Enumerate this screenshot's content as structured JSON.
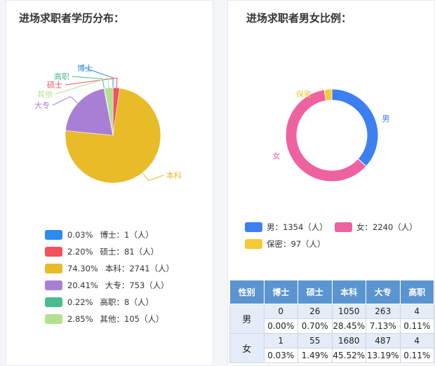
{
  "left": {
    "title": "进场求职者学历分布：",
    "legend": [
      {
        "pct": "0.03%",
        "text": "博士：1（人）",
        "color": "#2b8cef"
      },
      {
        "pct": "2.20%",
        "text": "硕士：81（人）",
        "color": "#f4515c"
      },
      {
        "pct": "74.30%",
        "text": "本科：2741（人）",
        "color": "#e8bb29"
      },
      {
        "pct": "20.41%",
        "text": "大专：753（人）",
        "color": "#a97fd6"
      },
      {
        "pct": "0.22%",
        "text": "高职：8（人）",
        "color": "#4bbc8e"
      },
      {
        "pct": "2.85%",
        "text": "其他：105（人）",
        "color": "#b3e190"
      }
    ]
  },
  "right": {
    "title": "进场求职者男女比例：",
    "legend": [
      {
        "text": "男：1354（人）",
        "color": "#3b7ff1"
      },
      {
        "text": "女：2240（人）",
        "color": "#ee62a0"
      },
      {
        "text": "保密：97（人）",
        "color": "#f7c934"
      }
    ],
    "table": {
      "headers": [
        "性别",
        "博士",
        "硕士",
        "本科",
        "大专",
        "高职"
      ],
      "rows": [
        {
          "gender": "男",
          "counts": [
            "0",
            "26",
            "1050",
            "263",
            "4"
          ],
          "pcts": [
            "0.00%",
            "0.70%",
            "28.45%",
            "7.13%",
            "0.11%"
          ]
        },
        {
          "gender": "女",
          "counts": [
            "1",
            "55",
            "1680",
            "487",
            "4"
          ],
          "pcts": [
            "0.03%",
            "1.49%",
            "45.52%",
            "13.19%",
            "0.11%"
          ]
        }
      ]
    }
  },
  "chart_data": [
    {
      "type": "pie",
      "title": "进场求职者学历分布：",
      "categories": [
        "博士",
        "硕士",
        "本科",
        "大专",
        "高职",
        "其他"
      ],
      "values": [
        1,
        81,
        2741,
        753,
        8,
        105
      ],
      "colors": [
        "#2b8cef",
        "#f4515c",
        "#e8bb29",
        "#a97fd6",
        "#4bbc8e",
        "#b3e190"
      ]
    },
    {
      "type": "pie",
      "title": "进场求职者男女比例：",
      "categories": [
        "男",
        "女",
        "保密"
      ],
      "values": [
        1354,
        2240,
        97
      ],
      "colors": [
        "#3b7ff1",
        "#ee62a0",
        "#f7c934"
      ]
    }
  ]
}
